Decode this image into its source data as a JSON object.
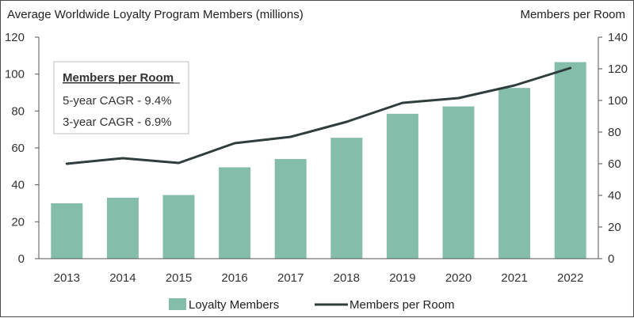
{
  "colors": {
    "bar": "#85bdab",
    "line": "#2f3d3d",
    "axis": "#555555",
    "text": "#333333",
    "callout_border": "#bfbfbf"
  },
  "chart_data": {
    "type": "bar",
    "title": "Average Worldwide Loyalty Program Members (millions)",
    "right_axis_title": "Members per Room",
    "categories": [
      "2013",
      "2014",
      "2015",
      "2016",
      "2017",
      "2018",
      "2019",
      "2020",
      "2021",
      "2022"
    ],
    "y_left": {
      "ylim": [
        0,
        120
      ],
      "ticks": [
        "0",
        "20",
        "40",
        "60",
        "80",
        "100",
        "120"
      ]
    },
    "y_right": {
      "ylim": [
        0,
        140
      ],
      "ticks": [
        "0",
        "20",
        "40",
        "60",
        "80",
        "100",
        "120",
        "140"
      ]
    },
    "grid": false,
    "legend_position": "bottom",
    "series": [
      {
        "name": "Loyalty Members",
        "type": "bar",
        "axis": "left",
        "values": [
          30,
          33,
          34.5,
          49.5,
          54,
          65.5,
          78.5,
          82.5,
          92.5,
          106.5
        ]
      },
      {
        "name": "Members per Room",
        "type": "line",
        "axis": "right",
        "values": [
          60,
          63.5,
          60.5,
          73,
          77,
          86.5,
          98.5,
          101.5,
          109.5,
          120.5
        ]
      }
    ],
    "callout": {
      "title": "Members per Room",
      "lines": [
        "5-year CAGR - 9.4%",
        "3-year CAGR - 6.9%"
      ]
    }
  }
}
